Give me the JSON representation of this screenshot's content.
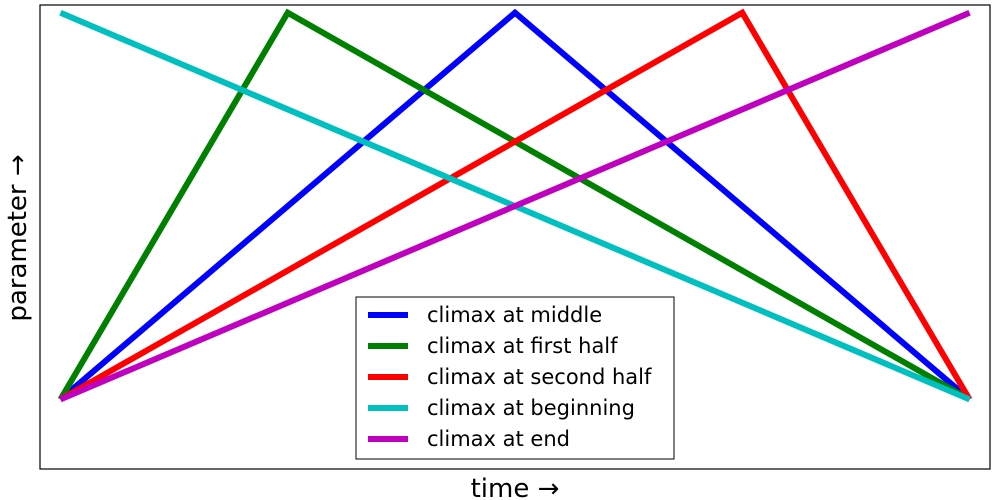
{
  "chart_data": {
    "type": "line",
    "title": "",
    "xlabel": "time →",
    "ylabel": "parameter →",
    "x_ticks": "none",
    "y_ticks": "none",
    "xlim": [
      -0.0225,
      1.0225
    ],
    "ylim": [
      -0.18,
      1.02
    ],
    "legend_position": "lower center",
    "series": [
      {
        "name": "climax at middle",
        "color": "#0000ff",
        "x": [
          0,
          0.5,
          1
        ],
        "y": [
          0,
          1,
          0
        ]
      },
      {
        "name": "climax at first half",
        "color": "#008000",
        "x": [
          0,
          0.25,
          1
        ],
        "y": [
          0,
          1,
          0
        ]
      },
      {
        "name": "climax at second half",
        "color": "#ff0000",
        "x": [
          0,
          0.75,
          1
        ],
        "y": [
          0,
          1,
          0
        ]
      },
      {
        "name": "climax at beginning",
        "color": "#00bfbf",
        "x": [
          0,
          1
        ],
        "y": [
          1,
          0
        ]
      },
      {
        "name": "climax at end",
        "color": "#bf00bf",
        "x": [
          0,
          1
        ],
        "y": [
          0,
          1
        ]
      }
    ]
  }
}
